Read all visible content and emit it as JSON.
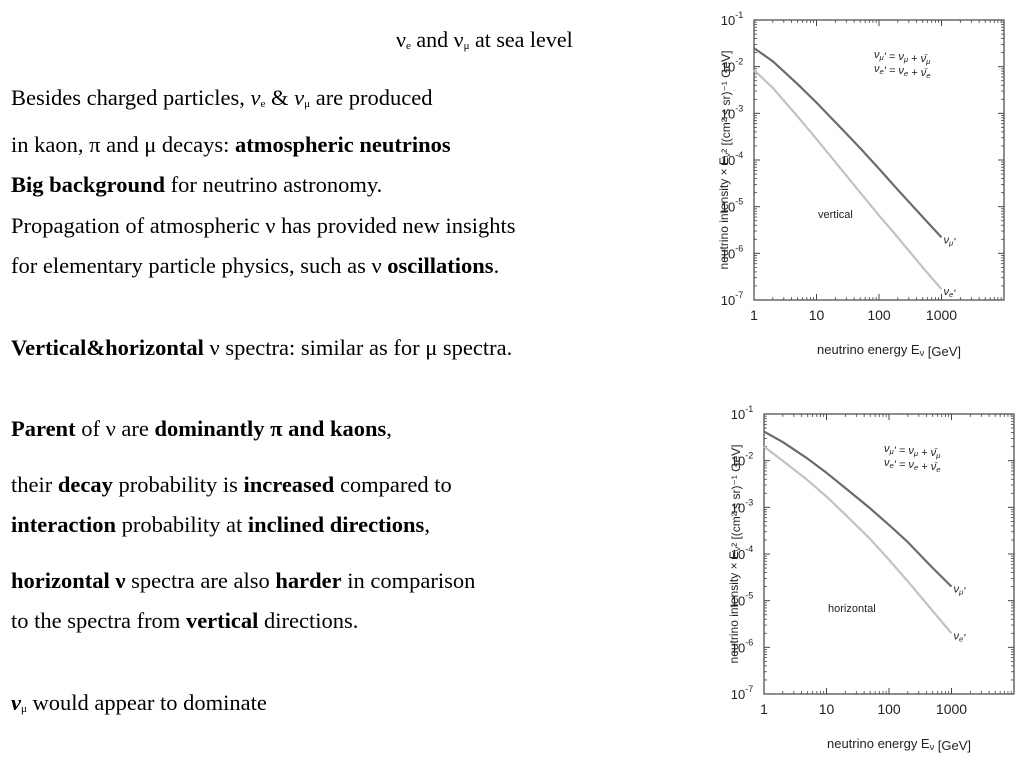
{
  "slide": {
    "title_parts": [
      "ν",
      "e",
      " and ν",
      "μ",
      " at sea level"
    ],
    "l1": [
      "Besides charged particles, ",
      "ν",
      "e",
      " & ",
      "ν",
      "μ",
      " are produced"
    ],
    "l2": [
      "in kaon, π and μ decays: ",
      "atmospheric neutrinos"
    ],
    "l3": [
      "Big background",
      " for neutrino astronomy."
    ],
    "l4": [
      "Propagation of atmospheric ν has provided new insights"
    ],
    "l5": [
      "for elementary particle physics, such as ν ",
      "oscillations",
      "."
    ],
    "l6": [
      "Vertical&horizontal",
      " ν spectra: similar as for μ spectra."
    ],
    "l7": [
      "Parent",
      " of ν are ",
      "dominantly π and kaons",
      ","
    ],
    "l8": [
      "their ",
      "decay",
      " probability is ",
      "increased",
      " compared to"
    ],
    "l9": [
      "interaction",
      " probability at ",
      "inclined directions",
      ","
    ],
    "l10": [
      "horizontal ν",
      " spectra are also ",
      "harder",
      " in comparison"
    ],
    "l11": [
      "to the spectra from ",
      "vertical",
      " directions."
    ],
    "l12": [
      "ν",
      "μ",
      " would appear to dominate"
    ]
  },
  "chart_data": [
    {
      "type": "line",
      "xscale": "log",
      "yscale": "log",
      "xlim": [
        1,
        10000
      ],
      "ylim": [
        1e-07,
        0.1
      ],
      "xticks": [
        "1",
        "10",
        "100",
        "1000"
      ],
      "yticks_exp": [
        "-7",
        "-6",
        "-5",
        "-4",
        "-3",
        "-2",
        "-1"
      ],
      "tick_base": "10",
      "xlabel": "neutrino energy E_ν [GeV]",
      "ylabel": "neutrino intensity × E_ν² [(cm² s sr)⁻¹ GeV]",
      "annotation": "vertical",
      "legend_lines": [
        "ν_μ' = ν_μ + ν̄_μ",
        "ν_e' = ν_e + ν̄_e"
      ],
      "legend_placement": "top-right",
      "series": [
        {
          "name": "ν_μ'",
          "color": "#6b6b6b",
          "x": [
            1,
            2,
            5,
            10,
            20,
            50,
            100,
            200,
            500,
            1000
          ],
          "y": [
            0.025,
            0.013,
            0.0042,
            0.0017,
            0.00065,
            0.00018,
            6.5e-05,
            2.3e-05,
            6e-06,
            2.2e-06
          ]
        },
        {
          "name": "ν_e'",
          "color": "#c2c2c2",
          "x": [
            1,
            2,
            5,
            10,
            20,
            50,
            100,
            200,
            500,
            1000
          ],
          "y": [
            0.0085,
            0.0035,
            0.00085,
            0.00028,
            9e-05,
            2e-05,
            6.5e-06,
            2.2e-06,
            5e-07,
            1.7e-07
          ]
        }
      ]
    },
    {
      "type": "line",
      "xscale": "log",
      "yscale": "log",
      "xlim": [
        1,
        10000
      ],
      "ylim": [
        1e-07,
        0.1
      ],
      "xticks": [
        "1",
        "10",
        "100",
        "1000"
      ],
      "yticks_exp": [
        "-7",
        "-6",
        "-5",
        "-4",
        "-3",
        "-2",
        "-1"
      ],
      "tick_base": "10",
      "xlabel": "neutrino energy E_ν [GeV]",
      "ylabel": "neutrino intensity × E_ν² [(cm² s sr)⁻¹ GeV]",
      "annotation": "horizontal",
      "legend_lines": [
        "ν_μ' = ν_μ + ν̄_μ",
        "ν_e' = ν_e + ν̄_e"
      ],
      "legend_placement": "top-right",
      "series": [
        {
          "name": "ν_μ'",
          "color": "#6b6b6b",
          "x": [
            1,
            2,
            5,
            10,
            20,
            50,
            100,
            200,
            500,
            1000
          ],
          "y": [
            0.042,
            0.025,
            0.011,
            0.0055,
            0.0026,
            0.00095,
            0.00042,
            0.00018,
            5e-05,
            2e-05
          ]
        },
        {
          "name": "ν_e'",
          "color": "#c2c2c2",
          "x": [
            1,
            2,
            5,
            10,
            20,
            50,
            100,
            200,
            500,
            1000
          ],
          "y": [
            0.02,
            0.01,
            0.0038,
            0.0017,
            0.0007,
            0.00021,
            7.5e-05,
            2.6e-05,
            6e-06,
            2e-06
          ]
        }
      ]
    }
  ]
}
